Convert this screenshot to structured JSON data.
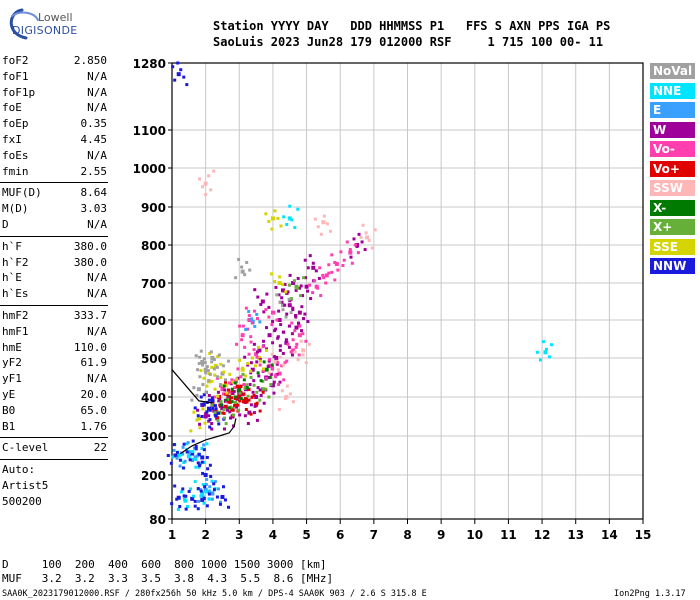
{
  "logo": {
    "line1": "Lowell",
    "line2": "DIGISONDE"
  },
  "header": {
    "row1": "Station YYYY DAY   DDD HHMMSS P1   FFS S AXN PPS IGA PS",
    "row2": "SaoLuis 2023 Jun28 179 012000 RSF     1 715 100 00- 11"
  },
  "params": {
    "group1": [
      {
        "key": "foF2",
        "value": "2.850"
      },
      {
        "key": "foF1",
        "value": "N/A"
      },
      {
        "key": "foF1p",
        "value": "N/A"
      },
      {
        "key": "foE",
        "value": "N/A"
      },
      {
        "key": "foEp",
        "value": "0.35"
      },
      {
        "key": "fxI",
        "value": "4.45"
      },
      {
        "key": "foEs",
        "value": "N/A"
      },
      {
        "key": "fmin",
        "value": "2.55"
      }
    ],
    "group2": [
      {
        "key": "MUF(D)",
        "value": "8.64"
      },
      {
        "key": "M(D)",
        "value": "3.03"
      },
      {
        "key": "D",
        "value": "N/A"
      }
    ],
    "group3": [
      {
        "key": "h`F",
        "value": "380.0"
      },
      {
        "key": "h`F2",
        "value": "380.0"
      },
      {
        "key": "h`E",
        "value": "N/A"
      },
      {
        "key": "h`Es",
        "value": "N/A"
      }
    ],
    "group4": [
      {
        "key": "hmF2",
        "value": "333.7"
      },
      {
        "key": "hmF1",
        "value": "N/A"
      },
      {
        "key": "hmE",
        "value": "110.0"
      },
      {
        "key": "yF2",
        "value": "61.9"
      },
      {
        "key": "yF1",
        "value": "N/A"
      },
      {
        "key": "yE",
        "value": "20.0"
      },
      {
        "key": "B0",
        "value": "65.0"
      },
      {
        "key": "B1",
        "value": "1.76"
      }
    ],
    "group5": [
      {
        "key": "C-level",
        "value": "22"
      }
    ],
    "autoscale": {
      "line1": "Auto:",
      "line2": "Artist5",
      "line3": "500200"
    }
  },
  "legend": [
    {
      "label": "NoVal",
      "bg": "#a0a0a0",
      "fg": "#ffffff"
    },
    {
      "label": "NNE",
      "bg": "#00e5ff",
      "fg": "#ffffff"
    },
    {
      "label": "E",
      "bg": "#3aa0ff",
      "fg": "#ffffff"
    },
    {
      "label": "W",
      "bg": "#a0009a",
      "fg": "#ffffff"
    },
    {
      "label": "Vo-",
      "bg": "#ff3fb0",
      "fg": "#ffffff"
    },
    {
      "label": "Vo+",
      "bg": "#e00000",
      "fg": "#ffffff"
    },
    {
      "label": "SSW",
      "bg": "#ffb6b6",
      "fg": "#ffffff"
    },
    {
      "label": "X-",
      "bg": "#007a00",
      "fg": "#ffffff"
    },
    {
      "label": "X+",
      "bg": "#66b03a",
      "fg": "#ffffff"
    },
    {
      "label": "SSE",
      "bg": "#d4d400",
      "fg": "#ffffff"
    },
    {
      "label": "NNW",
      "bg": "#1a1adc",
      "fg": "#ffffff"
    }
  ],
  "bottom": {
    "d_row": "D     100  200  400  600  800 1000 1500 3000 [km]",
    "muf_row": "MUF   3.2  3.2  3.3  3.5  3.8  4.3  5.5  8.6 [MHz]",
    "footer_left": "SAA0K_2023179012000.RSF / 280fx256h 50 kHz 5.0 km / DPS-4 SAA0K 903 / 2.6 S 315.8 E",
    "footer_right": "Ion2Png 1.3.17"
  },
  "chart_data": {
    "type": "scatter",
    "title": "",
    "xlabel": "",
    "ylabel": "",
    "xlim": [
      1,
      15
    ],
    "ylim": [
      80,
      1280
    ],
    "x_ticks": [
      1,
      2,
      3,
      4,
      5,
      6,
      7,
      8,
      9,
      10,
      11,
      12,
      13,
      14,
      15
    ],
    "y_ticks": [
      80,
      200,
      300,
      400,
      500,
      600,
      700,
      800,
      900,
      1000,
      1100,
      1280
    ],
    "grid": true,
    "series": [
      {
        "legend": "W",
        "color": "#a0009a",
        "points": [
          [
            3.6,
            520
          ],
          [
            3.9,
            560
          ],
          [
            4.2,
            600
          ],
          [
            4.5,
            640
          ],
          [
            4.8,
            620
          ],
          [
            3.4,
            470
          ],
          [
            3.8,
            450
          ],
          [
            4.1,
            500
          ],
          [
            4.4,
            540
          ],
          [
            4.7,
            580
          ],
          [
            3.2,
            420
          ],
          [
            3.5,
            400
          ],
          [
            4.0,
            430
          ],
          [
            2.2,
            380
          ],
          [
            2.6,
            390
          ],
          [
            3.0,
            410
          ],
          [
            3.3,
            360
          ],
          [
            2.8,
            350
          ],
          [
            4.6,
            700
          ],
          [
            5.0,
            690
          ],
          [
            5.2,
            740
          ],
          [
            4.3,
            680
          ],
          [
            3.7,
            650
          ],
          [
            6.5,
            800
          ],
          [
            2.3,
            360
          ],
          [
            2.0,
            350
          ]
        ]
      },
      {
        "legend": "Vo-",
        "color": "#ff3fb0",
        "points": [
          [
            3.1,
            560
          ],
          [
            3.5,
            510
          ],
          [
            3.9,
            480
          ],
          [
            4.2,
            460
          ],
          [
            4.6,
            520
          ],
          [
            2.9,
            440
          ],
          [
            2.5,
            420
          ],
          [
            3.3,
            600
          ],
          [
            4.0,
            620
          ],
          [
            4.8,
            560
          ],
          [
            5.6,
            720
          ],
          [
            5.9,
            750
          ],
          [
            6.3,
            780
          ],
          [
            5.3,
            690
          ]
        ]
      },
      {
        "legend": "Vo+",
        "color": "#e00000",
        "points": [
          [
            2.7,
            390
          ],
          [
            2.9,
            380
          ],
          [
            3.0,
            400
          ],
          [
            2.6,
            375
          ],
          [
            2.8,
            410
          ],
          [
            3.2,
            395
          ],
          [
            2.4,
            400
          ],
          [
            3.5,
            380
          ]
        ]
      },
      {
        "legend": "NNE",
        "color": "#00e5ff",
        "points": [
          [
            1.2,
            250
          ],
          [
            1.5,
            248
          ],
          [
            1.8,
            252
          ],
          [
            1.9,
            150
          ],
          [
            2.1,
            155
          ],
          [
            1.4,
            130
          ],
          [
            12.1,
            515
          ],
          [
            4.5,
            870
          ]
        ]
      },
      {
        "legend": "E",
        "color": "#3aa0ff",
        "points": [
          [
            1.3,
            255
          ],
          [
            1.7,
            245
          ],
          [
            2.0,
            160
          ],
          [
            2.2,
            150
          ],
          [
            3.4,
            595
          ]
        ]
      },
      {
        "legend": "NNW",
        "color": "#1a1adc",
        "points": [
          [
            1.1,
            250
          ],
          [
            1.6,
            255
          ],
          [
            1.9,
            245
          ],
          [
            1.2,
            138
          ],
          [
            1.6,
            135
          ],
          [
            1.9,
            132
          ],
          [
            2.5,
            140
          ],
          [
            2.0,
            200
          ],
          [
            2.1,
            370
          ],
          [
            2.3,
            355
          ],
          [
            1.9,
            380
          ],
          [
            2.2,
            390
          ],
          [
            1.2,
            1250
          ]
        ]
      },
      {
        "legend": "SSE",
        "color": "#d4d400",
        "points": [
          [
            2.1,
            440
          ],
          [
            2.3,
            480
          ],
          [
            2.6,
            430
          ],
          [
            3.1,
            470
          ],
          [
            3.6,
            500
          ],
          [
            4.2,
            700
          ],
          [
            4.0,
            870
          ],
          [
            1.8,
            345
          ]
        ]
      },
      {
        "legend": "X+",
        "color": "#66b03a",
        "points": [
          [
            2.4,
            360
          ],
          [
            2.8,
            370
          ],
          [
            3.2,
            430
          ],
          [
            4.7,
            690
          ],
          [
            3.7,
            420
          ]
        ]
      },
      {
        "legend": "X-",
        "color": "#007a00",
        "points": [
          [
            2.7,
            400
          ],
          [
            3.0,
            420
          ],
          [
            3.8,
            470
          ]
        ]
      },
      {
        "legend": "SSW",
        "color": "#ffb6b6",
        "points": [
          [
            4.1,
            490
          ],
          [
            4.9,
            520
          ],
          [
            6.8,
            820
          ],
          [
            5.5,
            860
          ],
          [
            2.0,
            960
          ],
          [
            4.4,
            400
          ]
        ]
      },
      {
        "legend": "NoVal",
        "color": "#a0a0a0",
        "points": [
          [
            2.0,
            470
          ],
          [
            2.2,
            500
          ],
          [
            2.5,
            460
          ],
          [
            1.9,
            490
          ],
          [
            1.8,
            420
          ],
          [
            4.3,
            640
          ],
          [
            3.1,
            730
          ]
        ]
      }
    ],
    "trace": {
      "color": "#000000",
      "points": [
        [
          1.25,
          255
        ],
        [
          1.6,
          275
        ],
        [
          2.0,
          290
        ],
        [
          2.4,
          300
        ],
        [
          2.7,
          308
        ],
        [
          2.85,
          325
        ],
        [
          2.9,
          345
        ]
      ]
    },
    "trace2": {
      "color": "#000000",
      "points": [
        [
          1.0,
          470
        ],
        [
          1.4,
          430
        ],
        [
          1.8,
          390
        ],
        [
          2.2,
          385
        ]
      ]
    }
  }
}
